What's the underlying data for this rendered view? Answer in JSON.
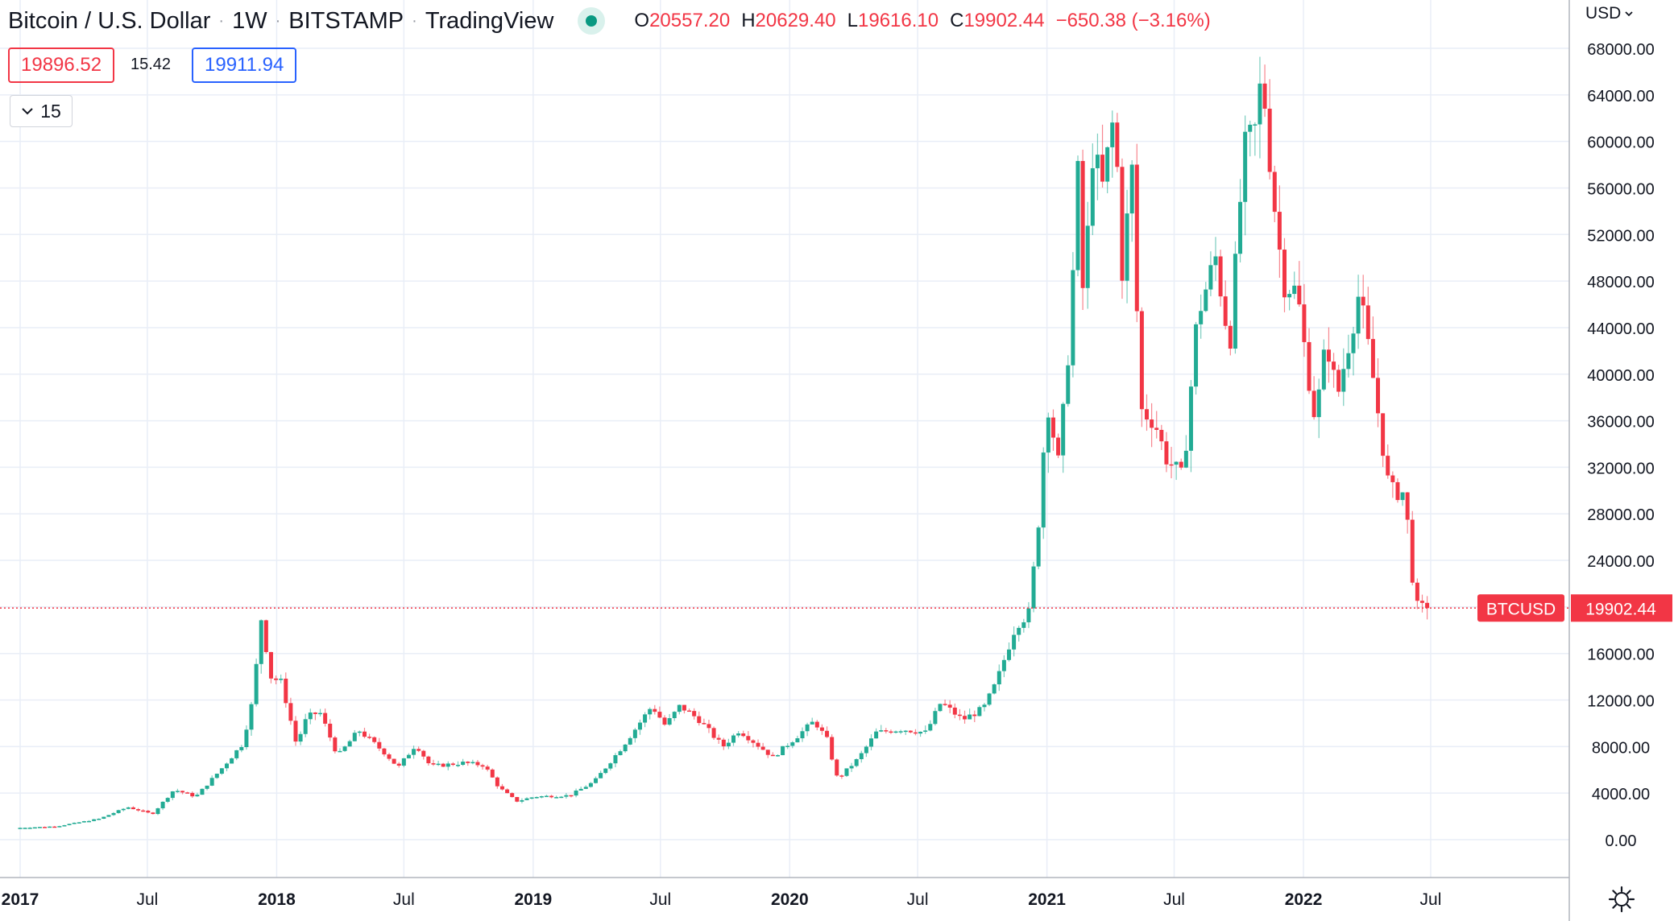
{
  "header": {
    "symbol_name": "Bitcoin / U.S. Dollar",
    "interval": "1W",
    "exchange": "BITSTAMP",
    "source": "TradingView",
    "ohlc": {
      "open_label": "O",
      "open": "20557.20",
      "high_label": "H",
      "high": "20629.40",
      "low_label": "L",
      "low": "19616.10",
      "close_label": "C",
      "close": "19902.44",
      "change": "−650.38 (−3.16%)"
    }
  },
  "quote": {
    "bid": "19896.52",
    "spread": "15.42",
    "ask": "19911.94"
  },
  "indicators_button": {
    "count": "15"
  },
  "currency_selector": {
    "label": "USD"
  },
  "colors": {
    "up": "#22ab94",
    "down": "#f23645",
    "grid": "#e9eef7",
    "axis_text": "#131722"
  },
  "icons": {
    "market_status": "green-dot-icon",
    "dropdown": "chevron-down-icon",
    "settings": "gear-icon"
  },
  "chart_data": {
    "type": "candlestick",
    "series_label": "BTCUSD",
    "last_price_label": "19902.44",
    "last_price": 19902.44,
    "ylim": [
      -1000,
      69500
    ],
    "y_ticks": [
      0,
      4000,
      8000,
      12000,
      16000,
      20000,
      24000,
      28000,
      32000,
      36000,
      40000,
      44000,
      48000,
      52000,
      56000,
      60000,
      64000,
      68000
    ],
    "y_tick_labels": [
      "0.00",
      "4000.00",
      "8000.00",
      "12000.00",
      "16000.00",
      "20000.00",
      "24000.00",
      "28000.00",
      "32000.00",
      "36000.00",
      "40000.00",
      "44000.00",
      "48000.00",
      "52000.00",
      "56000.00",
      "60000.00",
      "64000.00",
      "68000.00"
    ],
    "x_range": [
      "2017-01-01",
      "2022-12-31"
    ],
    "x_ticks": [
      {
        "label": "2017",
        "date": "2017-01-01",
        "bold": true
      },
      {
        "label": "Jul",
        "date": "2017-07-01",
        "bold": false
      },
      {
        "label": "2018",
        "date": "2018-01-01",
        "bold": true
      },
      {
        "label": "Jul",
        "date": "2018-07-01",
        "bold": false
      },
      {
        "label": "2019",
        "date": "2019-01-01",
        "bold": true
      },
      {
        "label": "Jul",
        "date": "2019-07-01",
        "bold": false
      },
      {
        "label": "2020",
        "date": "2020-01-01",
        "bold": true
      },
      {
        "label": "Jul",
        "date": "2020-07-01",
        "bold": false
      },
      {
        "label": "2021",
        "date": "2021-01-01",
        "bold": true
      },
      {
        "label": "Jul",
        "date": "2021-07-01",
        "bold": false
      },
      {
        "label": "2022",
        "date": "2022-01-01",
        "bold": true
      },
      {
        "label": "Jul",
        "date": "2022-07-01",
        "bold": false
      }
    ],
    "anchors": [
      [
        "2017-01-01",
        1000
      ],
      [
        "2017-03-01",
        1150
      ],
      [
        "2017-05-01",
        1800
      ],
      [
        "2017-06-10",
        2800
      ],
      [
        "2017-07-15",
        2200
      ],
      [
        "2017-08-15",
        4300
      ],
      [
        "2017-09-15",
        3700
      ],
      [
        "2017-10-20",
        6000
      ],
      [
        "2017-11-20",
        8200
      ],
      [
        "2017-12-05",
        12000
      ],
      [
        "2017-12-17",
        19000
      ],
      [
        "2017-12-31",
        14000
      ],
      [
        "2018-01-15",
        13500
      ],
      [
        "2018-02-05",
        8200
      ],
      [
        "2018-02-20",
        10500
      ],
      [
        "2018-03-10",
        11000
      ],
      [
        "2018-04-05",
        7200
      ],
      [
        "2018-05-05",
        9400
      ],
      [
        "2018-06-10",
        7500
      ],
      [
        "2018-06-30",
        6200
      ],
      [
        "2018-07-25",
        8200
      ],
      [
        "2018-08-15",
        6300
      ],
      [
        "2018-09-30",
        6600
      ],
      [
        "2018-10-30",
        6400
      ],
      [
        "2018-11-20",
        4500
      ],
      [
        "2018-12-15",
        3300
      ],
      [
        "2019-01-10",
        3700
      ],
      [
        "2019-03-01",
        3800
      ],
      [
        "2019-04-05",
        5000
      ],
      [
        "2019-05-15",
        8000
      ],
      [
        "2019-06-26",
        11500
      ],
      [
        "2019-07-15",
        9800
      ],
      [
        "2019-08-05",
        11500
      ],
      [
        "2019-09-01",
        10300
      ],
      [
        "2019-10-05",
        8000
      ],
      [
        "2019-10-28",
        9400
      ],
      [
        "2019-12-15",
        7100
      ],
      [
        "2020-01-15",
        8700
      ],
      [
        "2020-02-12",
        10200
      ],
      [
        "2020-03-01",
        8600
      ],
      [
        "2020-03-16",
        5200
      ],
      [
        "2020-04-15",
        7000
      ],
      [
        "2020-05-10",
        9200
      ],
      [
        "2020-06-15",
        9500
      ],
      [
        "2020-07-20",
        9200
      ],
      [
        "2020-08-10",
        11800
      ],
      [
        "2020-09-10",
        10300
      ],
      [
        "2020-10-10",
        11300
      ],
      [
        "2020-10-28",
        13500
      ],
      [
        "2020-11-25",
        18500
      ],
      [
        "2020-12-14",
        19500
      ],
      [
        "2020-12-28",
        28000
      ],
      [
        "2021-01-08",
        38000
      ],
      [
        "2021-01-25",
        32000
      ],
      [
        "2021-02-10",
        44000
      ],
      [
        "2021-02-21",
        57000
      ],
      [
        "2021-03-01",
        46000
      ],
      [
        "2021-03-14",
        59000
      ],
      [
        "2021-03-28",
        56000
      ],
      [
        "2021-04-14",
        62500
      ],
      [
        "2021-04-25",
        49000
      ],
      [
        "2021-05-10",
        58000
      ],
      [
        "2021-05-20",
        37000
      ],
      [
        "2021-06-10",
        36000
      ],
      [
        "2021-06-25",
        33000
      ],
      [
        "2021-07-20",
        31000
      ],
      [
        "2021-08-10",
        45000
      ],
      [
        "2021-09-05",
        50000
      ],
      [
        "2021-09-25",
        42500
      ],
      [
        "2021-10-15",
        59000
      ],
      [
        "2021-11-01",
        61000
      ],
      [
        "2021-11-10",
        66000
      ],
      [
        "2021-11-25",
        56000
      ],
      [
        "2021-12-10",
        48000
      ],
      [
        "2021-12-30",
        47000
      ],
      [
        "2022-01-10",
        42000
      ],
      [
        "2022-01-25",
        36000
      ],
      [
        "2022-02-10",
        43000
      ],
      [
        "2022-02-25",
        38000
      ],
      [
        "2022-03-28",
        47000
      ],
      [
        "2022-04-15",
        40500
      ],
      [
        "2022-05-10",
        30000
      ],
      [
        "2022-06-01",
        29800
      ],
      [
        "2022-06-13",
        22000
      ],
      [
        "2022-06-19",
        20000
      ],
      [
        "2022-06-26",
        19902
      ]
    ]
  }
}
